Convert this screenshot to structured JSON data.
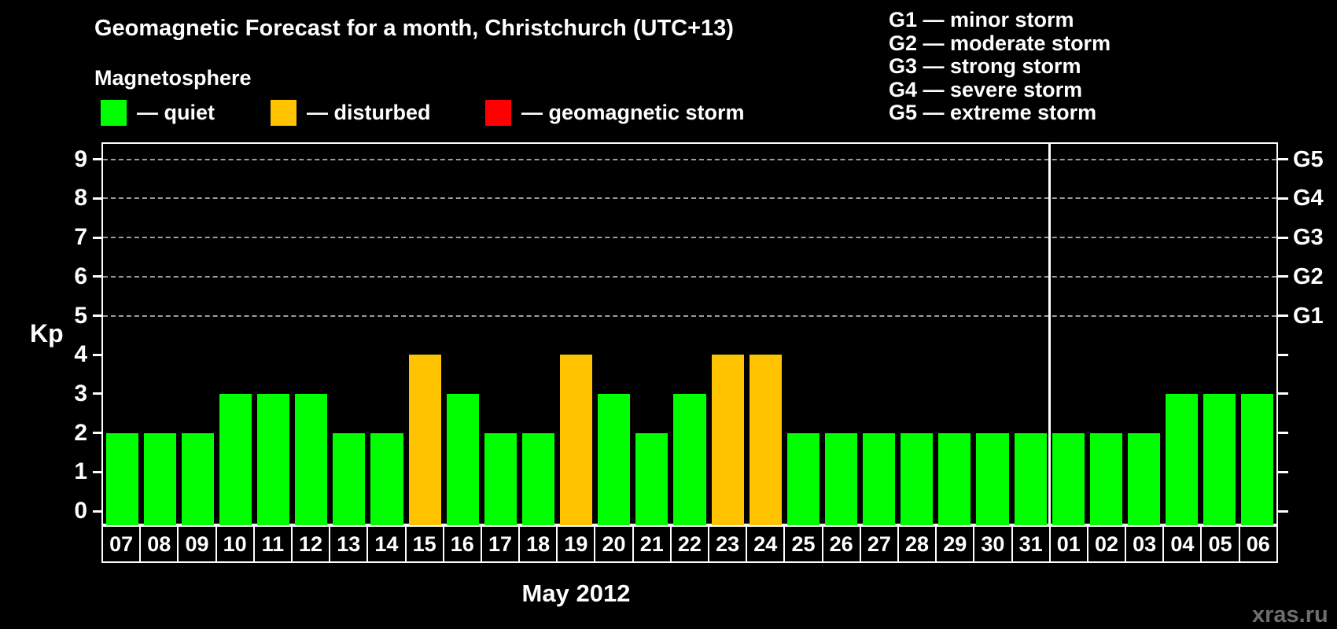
{
  "header": {
    "title": "Geomagnetic Forecast for a month, Christchurch (UTC+13)"
  },
  "legend": {
    "title": "Magnetosphere",
    "items": [
      {
        "status": "quiet",
        "label": "— quiet",
        "color": "#00ff00"
      },
      {
        "status": "disturbed",
        "label": "— disturbed",
        "color": "#ffc300"
      },
      {
        "status": "storm",
        "label": "— geomagnetic storm",
        "color": "#ff0000"
      }
    ]
  },
  "g_scale_legend": {
    "items": [
      "G1 — minor storm",
      "G2 — moderate storm",
      "G3 — strong storm",
      "G4 — severe storm",
      "G5 — extreme storm"
    ]
  },
  "axes": {
    "y_label": "Kp",
    "y_ticks": [
      0,
      1,
      2,
      3,
      4,
      5,
      6,
      7,
      8,
      9
    ],
    "right_labels": [
      {
        "kp": 5,
        "label": "G1"
      },
      {
        "kp": 6,
        "label": "G2"
      },
      {
        "kp": 7,
        "label": "G3"
      },
      {
        "kp": 8,
        "label": "G4"
      },
      {
        "kp": 9,
        "label": "G5"
      }
    ],
    "x_label": "May 2012"
  },
  "footer": {
    "watermark": "xras.ru"
  },
  "chart_data": {
    "type": "bar",
    "title": "Geomagnetic Forecast for a month, Christchurch (UTC+13)",
    "xlabel": "May 2012",
    "ylabel": "Kp",
    "ylim": [
      0,
      9
    ],
    "grid": "dashed horizontal lines at Kp 5-9 only",
    "legend_position": "top-left (status colors) and top-right (G-scale)",
    "categories": [
      "07",
      "08",
      "09",
      "10",
      "11",
      "12",
      "13",
      "14",
      "15",
      "16",
      "17",
      "18",
      "19",
      "20",
      "21",
      "22",
      "23",
      "24",
      "25",
      "26",
      "27",
      "28",
      "29",
      "30",
      "31",
      "01",
      "02",
      "03",
      "04",
      "05",
      "06"
    ],
    "values": [
      2,
      2,
      2,
      3,
      3,
      3,
      2,
      2,
      4,
      3,
      2,
      2,
      4,
      3,
      2,
      3,
      4,
      4,
      2,
      2,
      2,
      2,
      2,
      2,
      2,
      2,
      2,
      2,
      3,
      3,
      3
    ],
    "statuses": [
      "quiet",
      "quiet",
      "quiet",
      "quiet",
      "quiet",
      "quiet",
      "quiet",
      "quiet",
      "disturbed",
      "quiet",
      "quiet",
      "quiet",
      "disturbed",
      "quiet",
      "quiet",
      "quiet",
      "disturbed",
      "disturbed",
      "quiet",
      "quiet",
      "quiet",
      "quiet",
      "quiet",
      "quiet",
      "quiet",
      "quiet",
      "quiet",
      "quiet",
      "quiet",
      "quiet",
      "quiet"
    ],
    "color_map": {
      "quiet": "#00ff00",
      "disturbed": "#ffc300",
      "storm": "#ff0000"
    },
    "month_boundary_index": 25,
    "months": [
      {
        "label": "May 2012",
        "days": [
          "07",
          "08",
          "09",
          "10",
          "11",
          "12",
          "13",
          "14",
          "15",
          "16",
          "17",
          "18",
          "19",
          "20",
          "21",
          "22",
          "23",
          "24",
          "25",
          "26",
          "27",
          "28",
          "29",
          "30",
          "31"
        ]
      },
      {
        "label": "",
        "days": [
          "01",
          "02",
          "03",
          "04",
          "05",
          "06"
        ]
      }
    ]
  }
}
